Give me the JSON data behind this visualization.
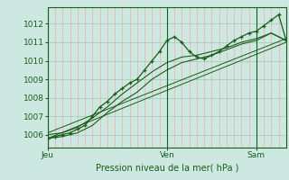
{
  "title": "Pression niveau de la mer( hPa )",
  "ylabel_ticks": [
    1006,
    1007,
    1008,
    1009,
    1010,
    1011,
    1012
  ],
  "ylim": [
    1005.3,
    1012.9
  ],
  "xlim": [
    0,
    96
  ],
  "day_ticks": [
    0,
    48,
    84
  ],
  "day_labels": [
    "Jeu",
    "Ven",
    "Sam"
  ],
  "bg_color": "#cce8e0",
  "line_color": "#1a5c1a",
  "line1": [
    [
      0,
      1005.8
    ],
    [
      3,
      1005.9
    ],
    [
      6,
      1006.0
    ],
    [
      9,
      1006.1
    ],
    [
      12,
      1006.3
    ],
    [
      15,
      1006.5
    ],
    [
      18,
      1007.0
    ],
    [
      21,
      1007.5
    ],
    [
      24,
      1007.8
    ],
    [
      27,
      1008.2
    ],
    [
      30,
      1008.5
    ],
    [
      33,
      1008.8
    ],
    [
      36,
      1009.0
    ],
    [
      39,
      1009.5
    ],
    [
      42,
      1010.0
    ],
    [
      45,
      1010.5
    ],
    [
      48,
      1011.1
    ],
    [
      51,
      1011.3
    ],
    [
      54,
      1011.0
    ],
    [
      57,
      1010.5
    ],
    [
      60,
      1010.2
    ],
    [
      63,
      1010.1
    ],
    [
      66,
      1010.3
    ],
    [
      69,
      1010.5
    ],
    [
      72,
      1010.8
    ],
    [
      75,
      1011.1
    ],
    [
      78,
      1011.3
    ],
    [
      81,
      1011.5
    ],
    [
      84,
      1011.6
    ],
    [
      87,
      1011.9
    ],
    [
      90,
      1012.2
    ],
    [
      93,
      1012.5
    ],
    [
      96,
      1011.1
    ]
  ],
  "line2": [
    [
      0,
      1005.8
    ],
    [
      96,
      1011.0
    ]
  ],
  "line3": [
    [
      0,
      1006.1
    ],
    [
      96,
      1011.2
    ]
  ],
  "line4_pts": [
    [
      0,
      1005.8
    ],
    [
      6,
      1005.9
    ],
    [
      12,
      1006.1
    ],
    [
      18,
      1006.5
    ],
    [
      24,
      1007.2
    ],
    [
      30,
      1007.8
    ],
    [
      36,
      1008.3
    ],
    [
      42,
      1009.0
    ],
    [
      48,
      1009.5
    ],
    [
      54,
      1009.9
    ],
    [
      60,
      1010.1
    ],
    [
      66,
      1010.3
    ],
    [
      72,
      1010.6
    ],
    [
      78,
      1010.9
    ],
    [
      84,
      1011.1
    ],
    [
      90,
      1011.5
    ],
    [
      96,
      1011.1
    ]
  ],
  "line5_pts": [
    [
      0,
      1006.0
    ],
    [
      6,
      1006.1
    ],
    [
      12,
      1006.4
    ],
    [
      18,
      1006.9
    ],
    [
      24,
      1007.5
    ],
    [
      30,
      1008.2
    ],
    [
      36,
      1008.8
    ],
    [
      42,
      1009.4
    ],
    [
      48,
      1009.9
    ],
    [
      54,
      1010.2
    ],
    [
      60,
      1010.3
    ],
    [
      66,
      1010.5
    ],
    [
      72,
      1010.7
    ],
    [
      78,
      1011.0
    ],
    [
      84,
      1011.2
    ],
    [
      90,
      1011.5
    ],
    [
      96,
      1011.1
    ]
  ],
  "red_grid_color": "#ff9999",
  "green_grid_color": "#99ccbb"
}
